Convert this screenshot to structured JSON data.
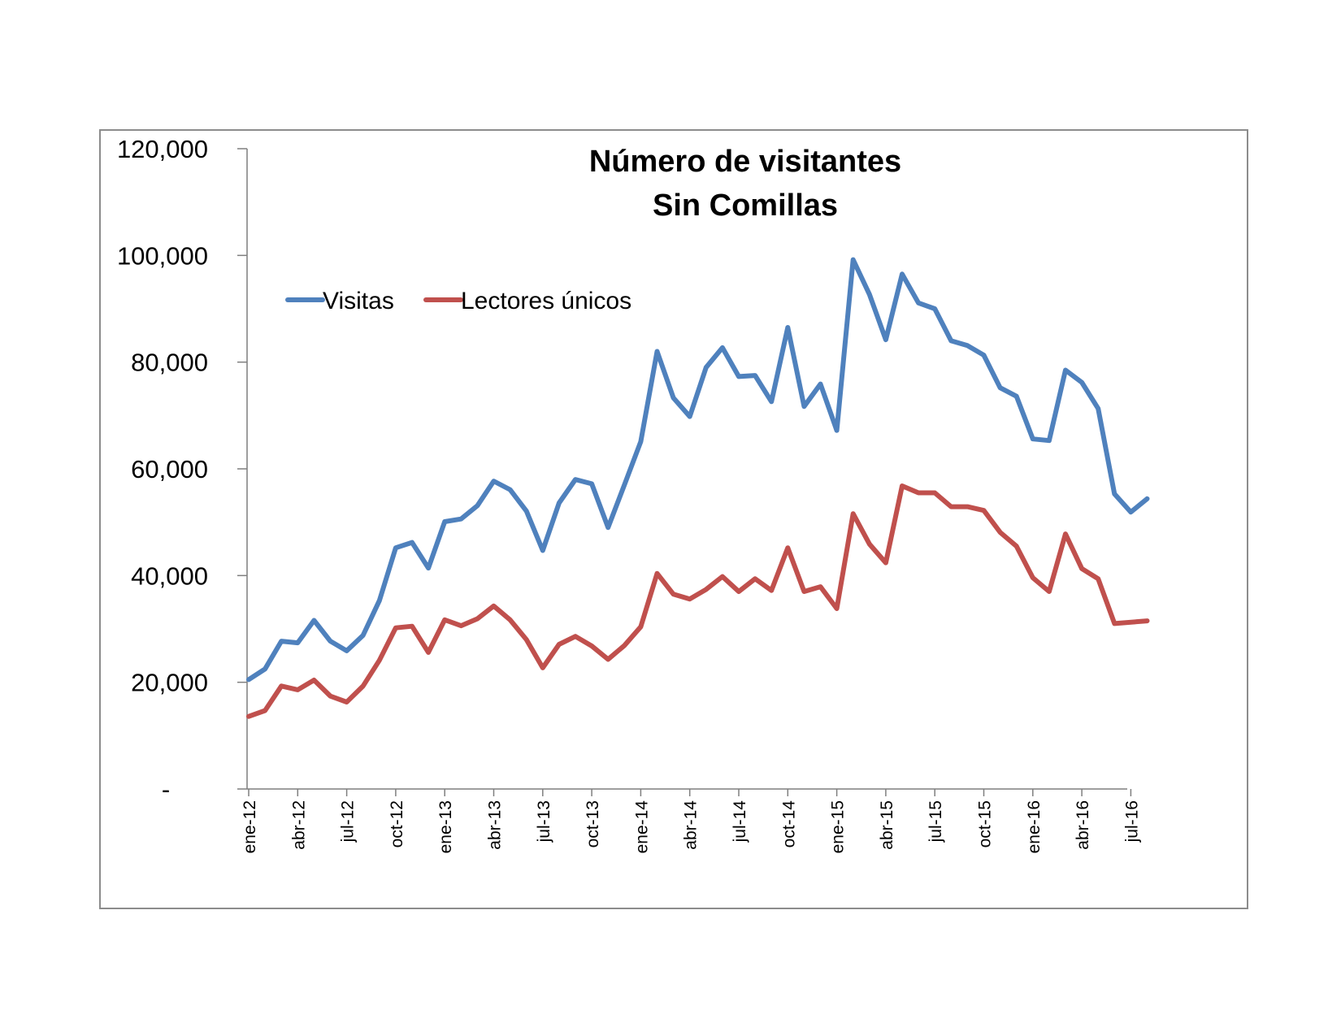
{
  "chart_data": {
    "type": "line",
    "title": [
      "Número de visitantes",
      "Sin Comillas"
    ],
    "xlabel": "",
    "ylabel": "",
    "ylim": [
      0,
      120000
    ],
    "yticks": [
      0,
      20000,
      40000,
      60000,
      80000,
      100000,
      120000
    ],
    "ytick_labels": [
      "-",
      "20,000",
      "40,000",
      "60,000",
      "80,000",
      "100,000",
      "120,000"
    ],
    "xtick_labels": [
      "ene-12",
      "abr-12",
      "jul-12",
      "oct-12",
      "ene-13",
      "abr-13",
      "jul-13",
      "oct-13",
      "ene-14",
      "abr-14",
      "jul-14",
      "oct-14",
      "ene-15",
      "abr-15",
      "jul-15",
      "oct-15",
      "ene-16",
      "abr-16",
      "jul-16"
    ],
    "x": [
      "2012-01",
      "2012-02",
      "2012-03",
      "2012-04",
      "2012-05",
      "2012-06",
      "2012-07",
      "2012-08",
      "2012-09",
      "2012-10",
      "2012-11",
      "2012-12",
      "2013-01",
      "2013-02",
      "2013-03",
      "2013-04",
      "2013-05",
      "2013-06",
      "2013-07",
      "2013-08",
      "2013-09",
      "2013-10",
      "2013-11",
      "2013-12",
      "2014-01",
      "2014-02",
      "2014-03",
      "2014-04",
      "2014-05",
      "2014-06",
      "2014-07",
      "2014-08",
      "2014-09",
      "2014-10",
      "2014-11",
      "2014-12",
      "2015-01",
      "2015-02",
      "2015-03",
      "2015-04",
      "2015-05",
      "2015-06",
      "2015-07",
      "2015-08",
      "2015-09",
      "2015-10",
      "2015-11",
      "2015-12",
      "2016-01",
      "2016-02",
      "2016-03",
      "2016-04",
      "2016-05",
      "2016-06",
      "2016-07",
      "2016-08"
    ],
    "grid": false,
    "legend_position": "top-left",
    "series": [
      {
        "name": "Visitas",
        "color": "#4f81bd",
        "values": [
          20500,
          22500,
          27700,
          27400,
          31600,
          27700,
          25900,
          28800,
          35300,
          45200,
          46200,
          41400,
          50100,
          50600,
          53100,
          57700,
          56100,
          52100,
          44700,
          53600,
          58000,
          57200,
          49000,
          57000,
          65100,
          82000,
          73300,
          69800,
          79000,
          82700,
          77300,
          77500,
          72600,
          86500,
          71700,
          75900,
          67200,
          99200,
          92700,
          84200,
          96500,
          91100,
          90000,
          84000,
          83100,
          81300,
          75200,
          73600,
          65600,
          65300,
          78500,
          76200,
          71300,
          55300,
          51900,
          54400
        ]
      },
      {
        "name": "Lectores únicos",
        "color": "#c0504d",
        "values": [
          13600,
          14700,
          19300,
          18600,
          20400,
          17400,
          16300,
          19300,
          24100,
          30200,
          30500,
          25600,
          31700,
          30600,
          31900,
          34300,
          31700,
          28000,
          22700,
          27100,
          28600,
          26800,
          24300,
          26900,
          30400,
          40400,
          36500,
          35600,
          37400,
          39800,
          37000,
          39400,
          37200,
          45200,
          37000,
          37900,
          33800,
          51600,
          45900,
          42400,
          56800,
          55500,
          55500,
          52900,
          52900,
          52200,
          48100,
          45500,
          39600,
          37000,
          47800,
          41300,
          39400,
          31000,
          null,
          31500
        ]
      }
    ]
  }
}
